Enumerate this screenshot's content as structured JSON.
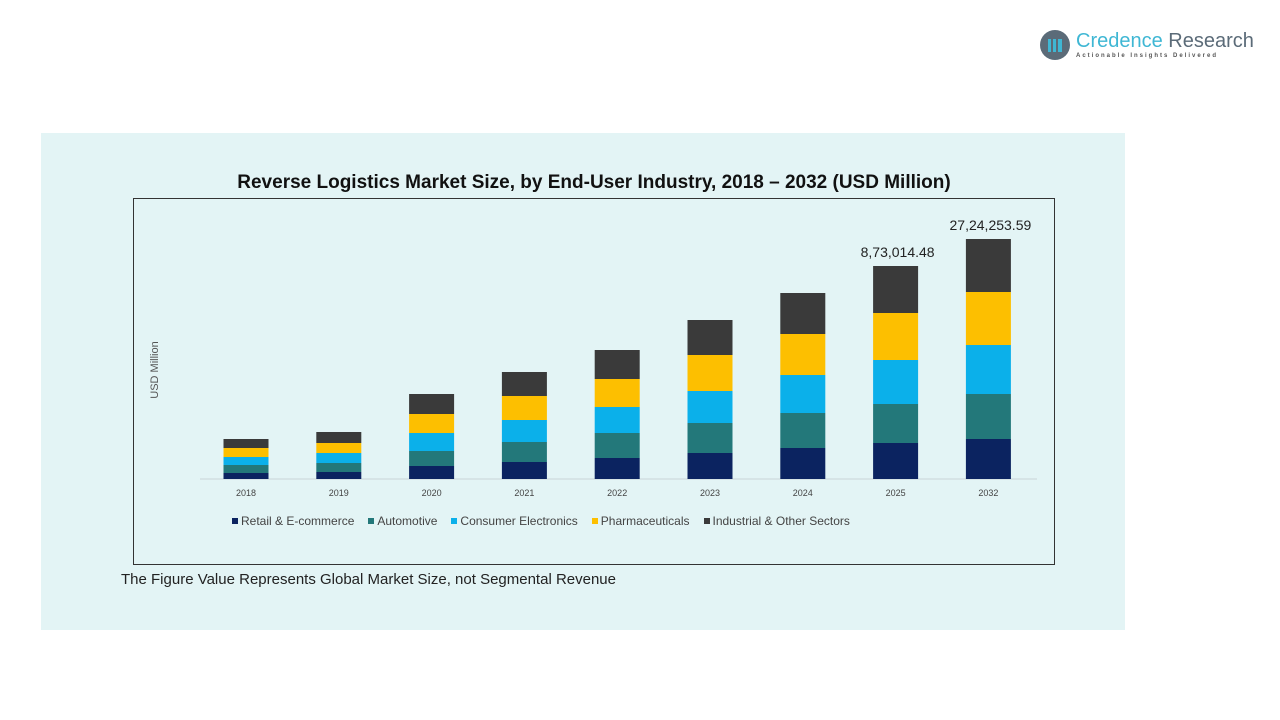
{
  "brand": {
    "name_part1": "Credence",
    "name_part2": " Research",
    "tagline": "Actionable Insights Delivered"
  },
  "chart_data": {
    "type": "bar",
    "stacked": true,
    "title": "Reverse Logistics Market Size, by End-User Industry, 2018 – 2032 (USD Million)",
    "ylabel": "USD Million",
    "xlabel": "",
    "categories": [
      "2018",
      "2019",
      "2020",
      "2021",
      "2022",
      "2023",
      "2024",
      "2025",
      "2032"
    ],
    "series": [
      {
        "name": "Retail & E-commerce",
        "color": "#0b2360",
        "values": [
          6,
          7,
          13,
          17,
          21,
          26,
          31,
          36,
          40
        ]
      },
      {
        "name": "Automotive",
        "color": "#23787a",
        "values": [
          8,
          9,
          15,
          20,
          25,
          30,
          35,
          39,
          45
        ]
      },
      {
        "name": "Consumer Electronics",
        "color": "#0bb0ea",
        "values": [
          8,
          10,
          18,
          22,
          26,
          32,
          38,
          44,
          49
        ]
      },
      {
        "name": "Pharmaceuticals",
        "color": "#fdbf00",
        "values": [
          9,
          10,
          19,
          24,
          28,
          36,
          41,
          47,
          53
        ]
      },
      {
        "name": "Industrial & Other Sectors",
        "color": "#3a3a3a",
        "values": [
          9,
          11,
          20,
          24,
          29,
          35,
          41,
          47,
          53
        ]
      }
    ],
    "data_labels": [
      {
        "category": "2025",
        "text": "8,73,014.48"
      },
      {
        "category": "2032",
        "text": "27,24,253.59"
      }
    ],
    "grid": false,
    "legend": "bottom",
    "note": "The Figure Value Represents Global Market Size, not Segmental Revenue"
  }
}
